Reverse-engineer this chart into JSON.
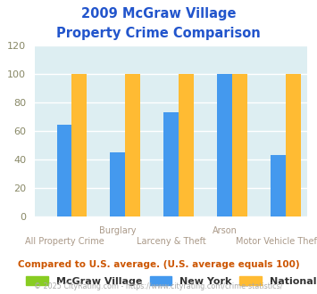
{
  "title_line1": "2009 McGraw Village",
  "title_line2": "Property Crime Comparison",
  "categories": [
    "All Property Crime",
    "Burglary",
    "Larceny & Theft",
    "Arson",
    "Motor Vehicle Theft"
  ],
  "series": {
    "McGraw Village": [
      0,
      0,
      0,
      0,
      0
    ],
    "New York": [
      64,
      45,
      73,
      100,
      43
    ],
    "National": [
      100,
      100,
      100,
      100,
      100
    ]
  },
  "colors": {
    "McGraw Village": "#88cc22",
    "New York": "#4499ee",
    "National": "#ffbb33"
  },
  "ylim": [
    0,
    120
  ],
  "yticks": [
    0,
    20,
    40,
    60,
    80,
    100,
    120
  ],
  "plot_bg": "#ddeef2",
  "fig_bg": "#ffffff",
  "title_color": "#2255cc",
  "axis_label_color": "#aa9988",
  "grid_color": "#ffffff",
  "note_text": "Compared to U.S. average. (U.S. average equals 100)",
  "note_color": "#cc5500",
  "footer_text": "© 2025 CityRating.com - https://www.cityrating.com/crime-statistics/",
  "footer_color": "#aaaaaa",
  "bar_width": 0.28
}
